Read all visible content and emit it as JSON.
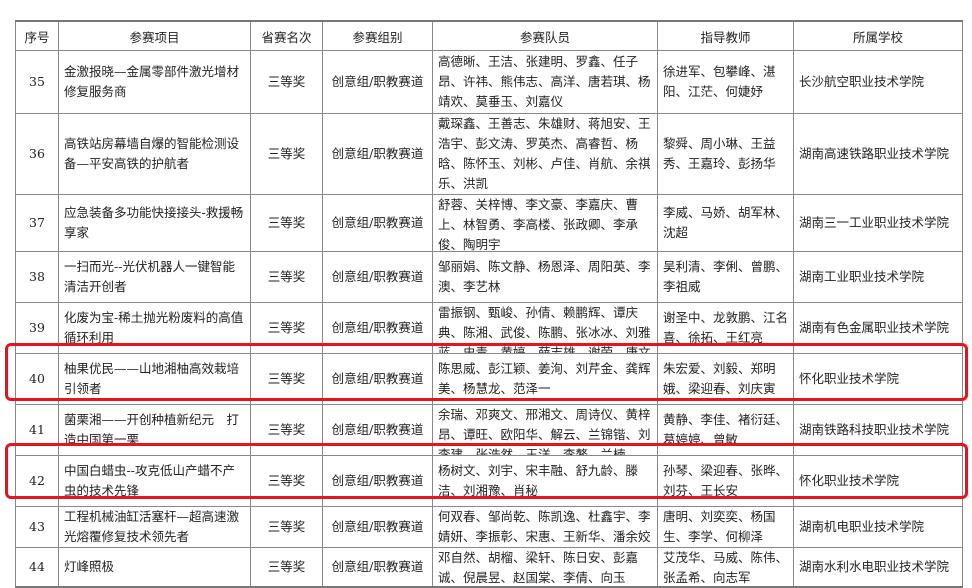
{
  "headers": [
    "序号",
    "参赛项目",
    "省赛名次",
    "参赛组别",
    "参赛队员",
    "指导教师",
    "所属学校"
  ],
  "rows": [
    {
      "no": "35",
      "project": "金激报晓—金属零部件激光增材修复服务商",
      "rank": "三等奖",
      "group": "创意组/职教赛道",
      "members": "高德晰、王洁、张建明、罗鑫、任子昂、许祎、熊伟志、高洋、唐若琪、杨靖欢、莫垂玉、刘嘉仪",
      "teachers": "徐进军、包攀峰、湛阳、江茫、何婕妤",
      "school": "长沙航空职业技术学院"
    },
    {
      "no": "36",
      "project": "高铁站房幕墙自爆的智能检测设备—平安高铁的护航者",
      "rank": "三等奖",
      "group": "创意组/职教赛道",
      "members": "戴琛鑫、王善志、朱雄财、蒋旭安、王浩宇、彭文涛、罗英杰、高睿哲、杨晗、陈怀玉、刘彬、卢佳、肖航、余祺乐、洪凯",
      "teachers": "黎舜、周小琳、王益秀、王嘉玲、彭扬华",
      "school": "湖南高速铁路职业技术学院"
    },
    {
      "no": "37",
      "project": "应急装备多功能快接接头-救援畅享家",
      "rank": "三等奖",
      "group": "创意组/职教赛道",
      "members": "舒蓉、关梓博、李文豪、李嘉庆、曹上、林智勇、李高楼、张政卿、李承俊、陶明宇",
      "teachers": "李威、马娇、胡军林、沈超",
      "school": "湖南三一工业职业技术学院"
    },
    {
      "no": "38",
      "project": "一扫而光--光伏机器人一键智能清洁开创者",
      "rank": "三等奖",
      "group": "创意组/职教赛道",
      "members": "邹丽娟、陈文静、杨恩泽、周阳英、李澳、李艺林",
      "teachers": "吴利清、李俐、曾鹏、李祖威",
      "school": "湖南工业职业技术学院"
    },
    {
      "no": "39",
      "project": "化废为宝-稀土抛光粉废料的高值循环利用",
      "rank": "三等奖",
      "group": "创意组/职教赛道",
      "members": "雷振钢、甄峻、孙倩、赖鹏辉、谭庆典、陈湘、武俊、陈鹏、张冰冰、刘雅蓝、史青、黄婷、薛志雄、谢荣、唐文军",
      "teachers": "谢圣中、龙敦鹏、江名喜、徐拓、王红亮",
      "school": "湖南有色金属职业技术学院"
    },
    {
      "no": "40",
      "project": "柚果优民——山地湘柚高效栽培引领者",
      "rank": "三等奖",
      "group": "创意组/职教赛道",
      "members": "陈思威、彭江颖、姜洵、刘芹金、龚辉美、杨慧龙、范泽一",
      "teachers": "朱宏爱、刘毅、郑明娥、梁迎春、刘庆寅",
      "school": "怀化职业技术学院"
    },
    {
      "no": "41",
      "project": "菌栗湘——开创种植新纪元　打造中国第一栗",
      "rank": "三等奖",
      "group": "创意组/职教赛道",
      "members": "余瑞、邓爽文、邢湘文、周诗仪、黄梓昂、谭旺、欧阳华、解云、兰锦锴、刘李建、张浩然、王洋、李鳌、兰楠",
      "teachers": "黄静、李佳、褚衍廷、葛婷婷、曾敏",
      "school": "湖南铁路科技职业技术学院"
    },
    {
      "no": "42",
      "project": "中国白蜡虫--攻克低山产蜡不产虫的技术先锋",
      "rank": "三等奖",
      "group": "创意组/职教赛道",
      "members": "杨树文、刘宇、宋丰融、舒九龄、滕洁、刘湘豫、肖秘",
      "teachers": "孙琴、梁迎春、张晔、刘芬、王长安",
      "school": "怀化职业技术学院"
    },
    {
      "no": "43",
      "project": "工程机械油缸活塞杆—超高速激光熔覆修复技术领先者",
      "rank": "三等奖",
      "group": "创意组/职教赛道",
      "members": "何双春、邹尚乾、陈凯逸、杜鑫宇、李婧妍、李振彰、宋惠、王新华、潘余姣",
      "teachers": "唐明、刘奕奕、杨国生、李学、何柳泽",
      "school": "湖南机电职业技术学院"
    },
    {
      "no": "44",
      "project": "灯峰照极",
      "rank": "三等奖",
      "group": "创意组/职教赛道",
      "members": "邓自然、胡榴、梁轩、陈日安、彭嘉诚、倪晨昱、赵国棠、李倩、向玉",
      "teachers": "艾茂华、马威、陈伟、张孟希、向志军",
      "school": "湖南水利水电职业技术学院"
    }
  ],
  "highlight_color": "#e8141b",
  "highlighted_rows": [
    "40",
    "42"
  ]
}
